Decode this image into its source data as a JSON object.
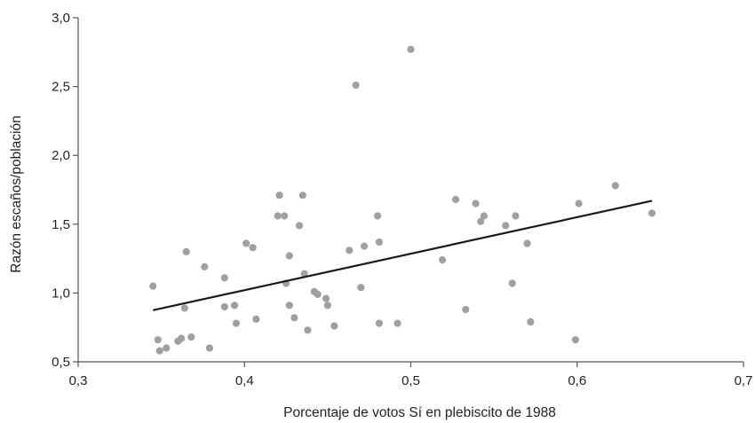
{
  "chart_data": {
    "type": "scatter",
    "title": "",
    "xlabel": "Porcentaje de votos Sí en plebiscito de 1988",
    "ylabel": "Razón escaños/población",
    "xlim": [
      0.3,
      0.7
    ],
    "ylim": [
      0.5,
      3.0
    ],
    "x_ticks": [
      "0,3",
      "0,4",
      "0,5",
      "0,6",
      "0,7"
    ],
    "y_ticks": [
      "0,5",
      "1,0",
      "1,5",
      "2,0",
      "2,5",
      "3,0"
    ],
    "grid": false,
    "legend": "none",
    "point_color": "#a0a0a0",
    "trend_color": "#1a1a1a",
    "points": [
      [
        0.345,
        1.05
      ],
      [
        0.348,
        0.66
      ],
      [
        0.349,
        0.58
      ],
      [
        0.353,
        0.6
      ],
      [
        0.36,
        0.65
      ],
      [
        0.362,
        0.67
      ],
      [
        0.364,
        0.89
      ],
      [
        0.365,
        1.3
      ],
      [
        0.368,
        0.68
      ],
      [
        0.376,
        1.19
      ],
      [
        0.379,
        0.6
      ],
      [
        0.388,
        0.9
      ],
      [
        0.388,
        1.11
      ],
      [
        0.394,
        0.91
      ],
      [
        0.395,
        0.78
      ],
      [
        0.401,
        1.36
      ],
      [
        0.405,
        1.33
      ],
      [
        0.407,
        0.81
      ],
      [
        0.42,
        1.56
      ],
      [
        0.421,
        1.71
      ],
      [
        0.424,
        1.56
      ],
      [
        0.425,
        1.07
      ],
      [
        0.427,
        1.27
      ],
      [
        0.427,
        0.91
      ],
      [
        0.43,
        0.82
      ],
      [
        0.433,
        1.49
      ],
      [
        0.435,
        1.71
      ],
      [
        0.436,
        1.14
      ],
      [
        0.438,
        0.73
      ],
      [
        0.442,
        1.01
      ],
      [
        0.444,
        0.99
      ],
      [
        0.449,
        0.96
      ],
      [
        0.45,
        0.91
      ],
      [
        0.454,
        0.76
      ],
      [
        0.463,
        1.31
      ],
      [
        0.467,
        2.51
      ],
      [
        0.47,
        1.04
      ],
      [
        0.472,
        1.34
      ],
      [
        0.48,
        1.56
      ],
      [
        0.481,
        1.37
      ],
      [
        0.481,
        0.78
      ],
      [
        0.492,
        0.78
      ],
      [
        0.5,
        2.77
      ],
      [
        0.519,
        1.24
      ],
      [
        0.527,
        1.68
      ],
      [
        0.533,
        0.88
      ],
      [
        0.539,
        1.65
      ],
      [
        0.542,
        1.52
      ],
      [
        0.544,
        1.56
      ],
      [
        0.557,
        1.49
      ],
      [
        0.561,
        1.07
      ],
      [
        0.563,
        1.56
      ],
      [
        0.57,
        1.36
      ],
      [
        0.572,
        0.79
      ],
      [
        0.599,
        0.66
      ],
      [
        0.601,
        1.65
      ],
      [
        0.623,
        1.78
      ],
      [
        0.645,
        1.58
      ]
    ],
    "trendline": [
      [
        0.345,
        0.875
      ],
      [
        0.645,
        1.67
      ]
    ]
  }
}
